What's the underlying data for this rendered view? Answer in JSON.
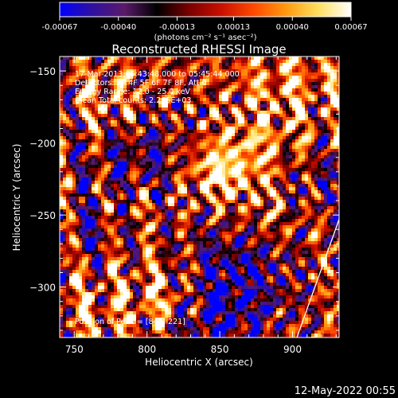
{
  "colorbar": {
    "tick_labels": [
      "-0.00067",
      "-0.00040",
      "-0.00013",
      "0.00013",
      "0.00040",
      "0.00067"
    ],
    "tick_values": [
      -0.00067,
      -0.0004,
      -0.00013,
      0.00013,
      0.0004,
      0.00067
    ],
    "units_label": "(photons cm⁻² s⁻¹ asec⁻²)",
    "colors": [
      "#0000ff",
      "#3010a0",
      "#5a1a6a",
      "#000000",
      "#7a0000",
      "#c81000",
      "#ff4a00",
      "#ff9a10",
      "#ffe060",
      "#ffffff"
    ]
  },
  "footer_date": "12-May-2022 00:55",
  "chart_data": {
    "type": "heatmap",
    "title": "Reconstructed RHESSI Image",
    "xlabel": "Heliocentric X (arcsec)",
    "ylabel": "Heliocentric Y (arcsec)",
    "xlim": [
      740,
      932
    ],
    "ylim": [
      -335,
      -140
    ],
    "x_ticks": [
      750,
      800,
      850,
      900
    ],
    "y_ticks": [
      -150,
      -200,
      -250,
      -300
    ],
    "x_tick_labels": [
      "750",
      "800",
      "850",
      "900"
    ],
    "y_tick_labels": [
      "−150",
      "−200",
      "−250",
      "−300"
    ],
    "annotations": [
      "17-Mar-2013 05:43:48.000 to 05:45:44.000",
      "Detectors: 3F 4F 5F 6F 7F 8F, Att 0",
      "Energy Range: 12.0 - 25.0 keV",
      "Clean    Total counts: 2.265E+03"
    ],
    "peak_label": "Position of Peak = [845,-221]",
    "peak_position": [
      845,
      -221
    ],
    "limb_line": [
      [
        903,
        -335
      ],
      [
        932,
        -253
      ]
    ],
    "limb_color": "#ffffff",
    "value_range": [
      -0.00067,
      0.00067
    ]
  }
}
